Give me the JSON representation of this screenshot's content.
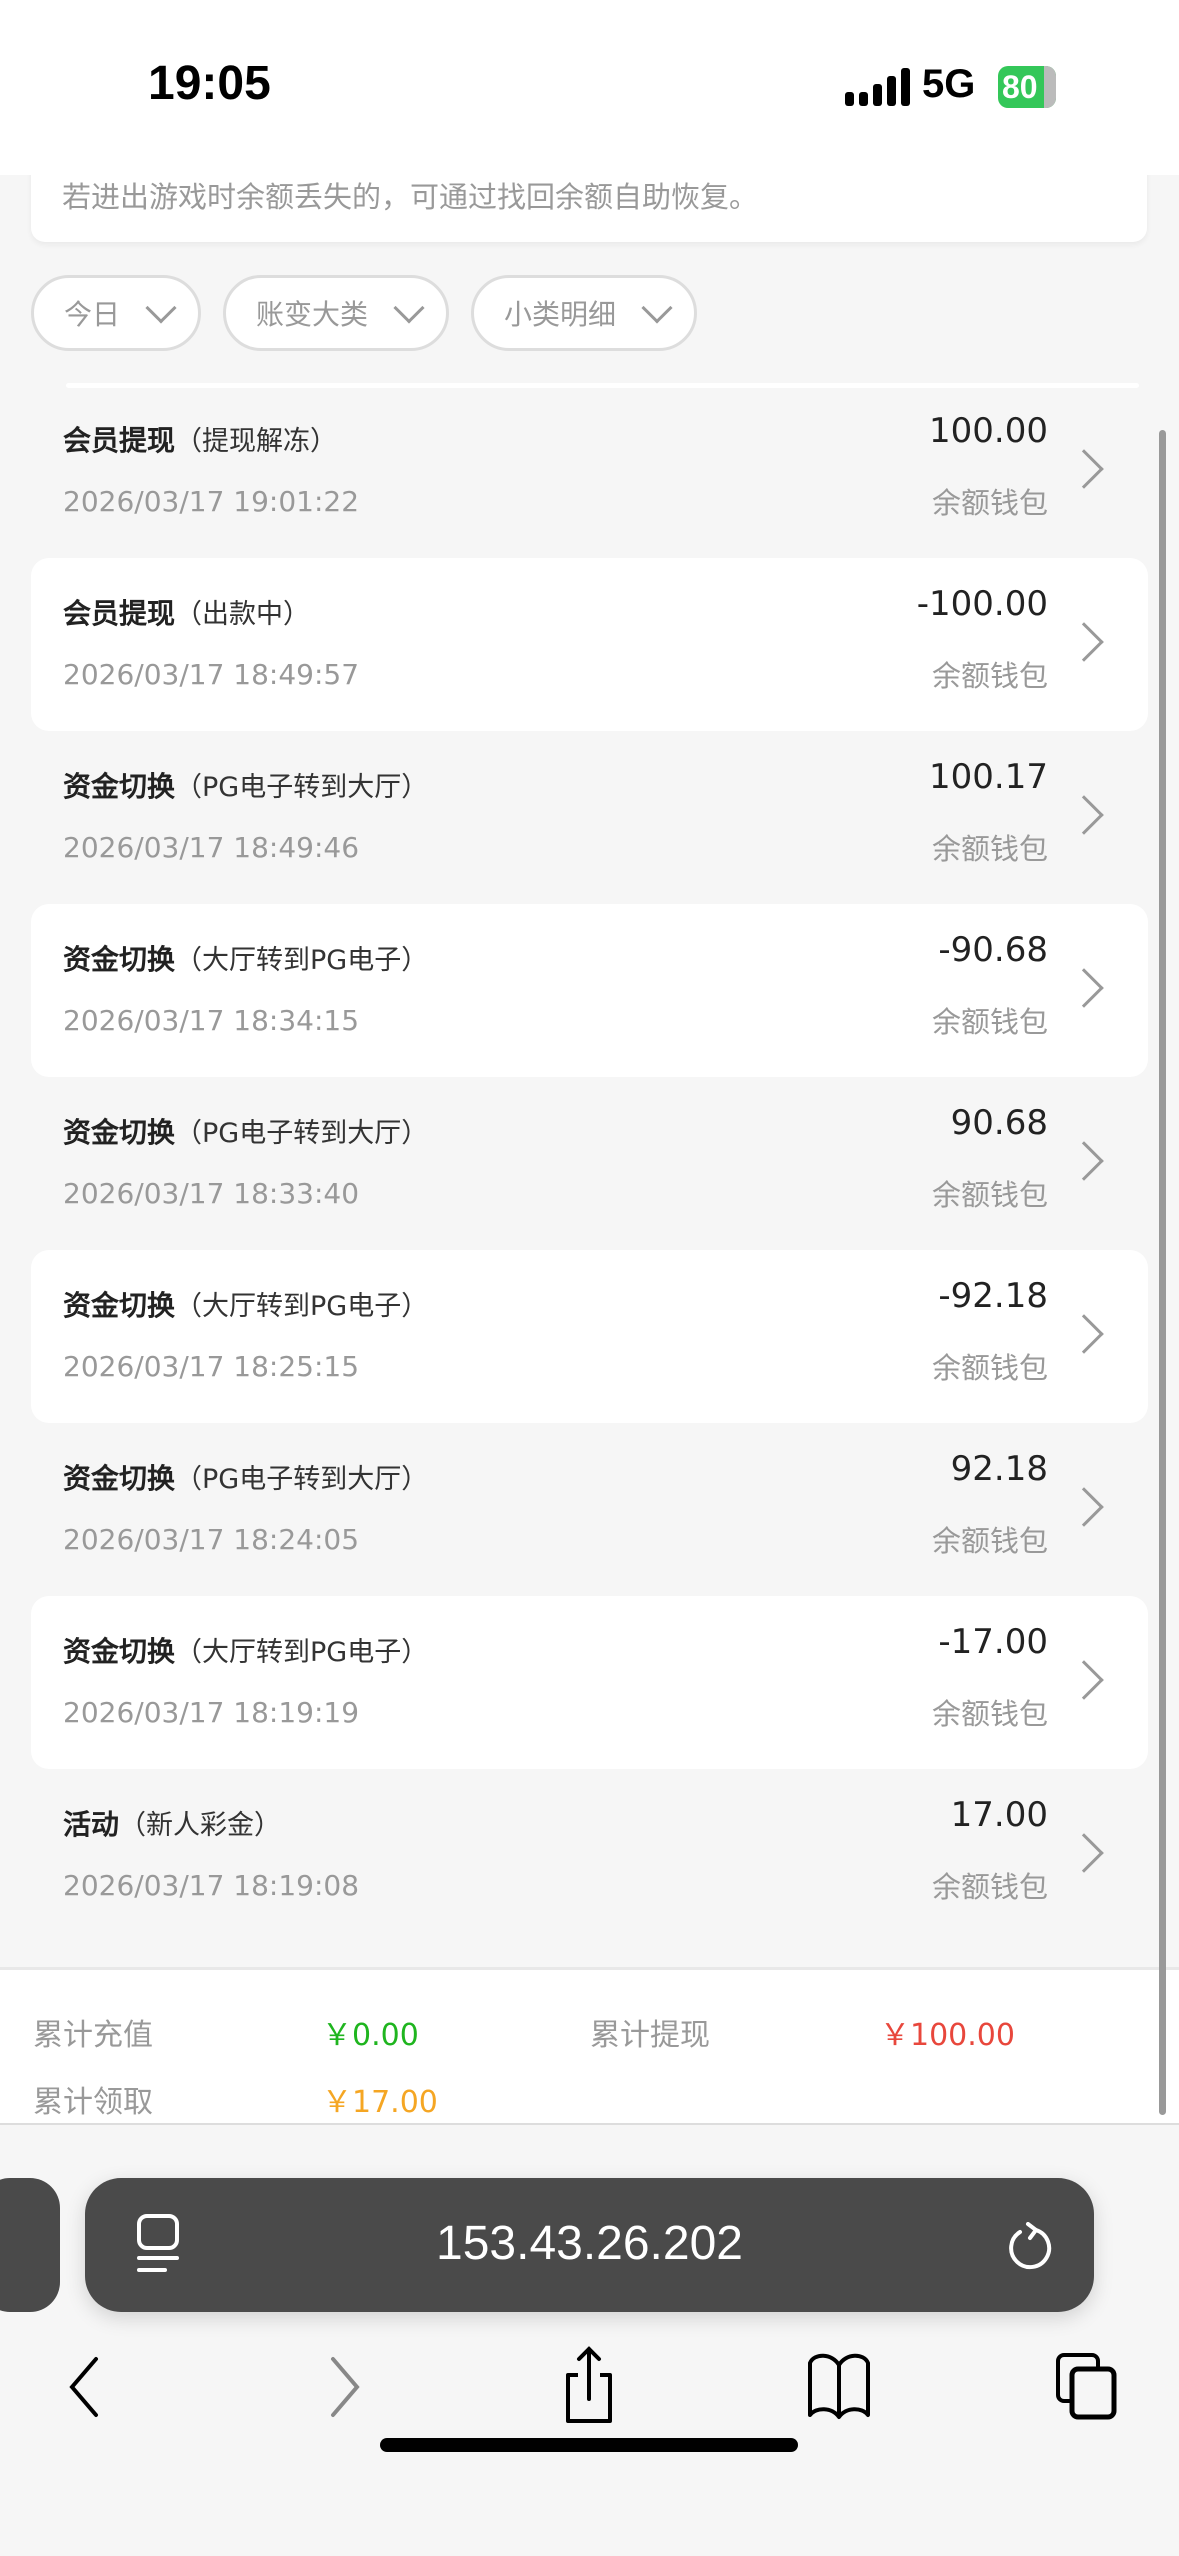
{
  "status_bar": {
    "time": "19:05",
    "network": "5G",
    "battery": "80"
  },
  "notice": "若进出游戏时余额丢失的，可通过找回余额自助恢复。",
  "filters": [
    {
      "label": "今日"
    },
    {
      "label": "账变大类"
    },
    {
      "label": "小类明细"
    }
  ],
  "transactions": [
    {
      "type": "会员提现",
      "detail": "（提现解冻）",
      "date": "2026/03/17 19:01:22",
      "amount": "100.00",
      "wallet": "余额钱包"
    },
    {
      "type": "会员提现",
      "detail": "（出款中）",
      "date": "2026/03/17 18:49:57",
      "amount": "-100.00",
      "wallet": "余额钱包"
    },
    {
      "type": "资金切换",
      "detail": "（PG电子转到大厅）",
      "date": "2026/03/17 18:49:46",
      "amount": "100.17",
      "wallet": "余额钱包"
    },
    {
      "type": "资金切换",
      "detail": "（大厅转到PG电子）",
      "date": "2026/03/17 18:34:15",
      "amount": "-90.68",
      "wallet": "余额钱包"
    },
    {
      "type": "资金切换",
      "detail": "（PG电子转到大厅）",
      "date": "2026/03/17 18:33:40",
      "amount": "90.68",
      "wallet": "余额钱包"
    },
    {
      "type": "资金切换",
      "detail": "（大厅转到PG电子）",
      "date": "2026/03/17 18:25:15",
      "amount": "-92.18",
      "wallet": "余额钱包"
    },
    {
      "type": "资金切换",
      "detail": "（PG电子转到大厅）",
      "date": "2026/03/17 18:24:05",
      "amount": "92.18",
      "wallet": "余额钱包"
    },
    {
      "type": "资金切换",
      "detail": "（大厅转到PG电子）",
      "date": "2026/03/17 18:19:19",
      "amount": "-17.00",
      "wallet": "余额钱包"
    },
    {
      "type": "活动",
      "detail": "（新人彩金）",
      "date": "2026/03/17 18:19:08",
      "amount": "17.00",
      "wallet": "余额钱包"
    }
  ],
  "summary": {
    "deposit_label": "累计充值",
    "deposit_value": "￥0.00",
    "deposit_color": "#1fb51f",
    "withdraw_label": "累计提现",
    "withdraw_value": "￥100.00",
    "withdraw_color": "#e8473c",
    "claim_label": "累计领取",
    "claim_value": "￥17.00",
    "claim_color": "#f5a623"
  },
  "browser": {
    "url": "153.43.26.202"
  }
}
